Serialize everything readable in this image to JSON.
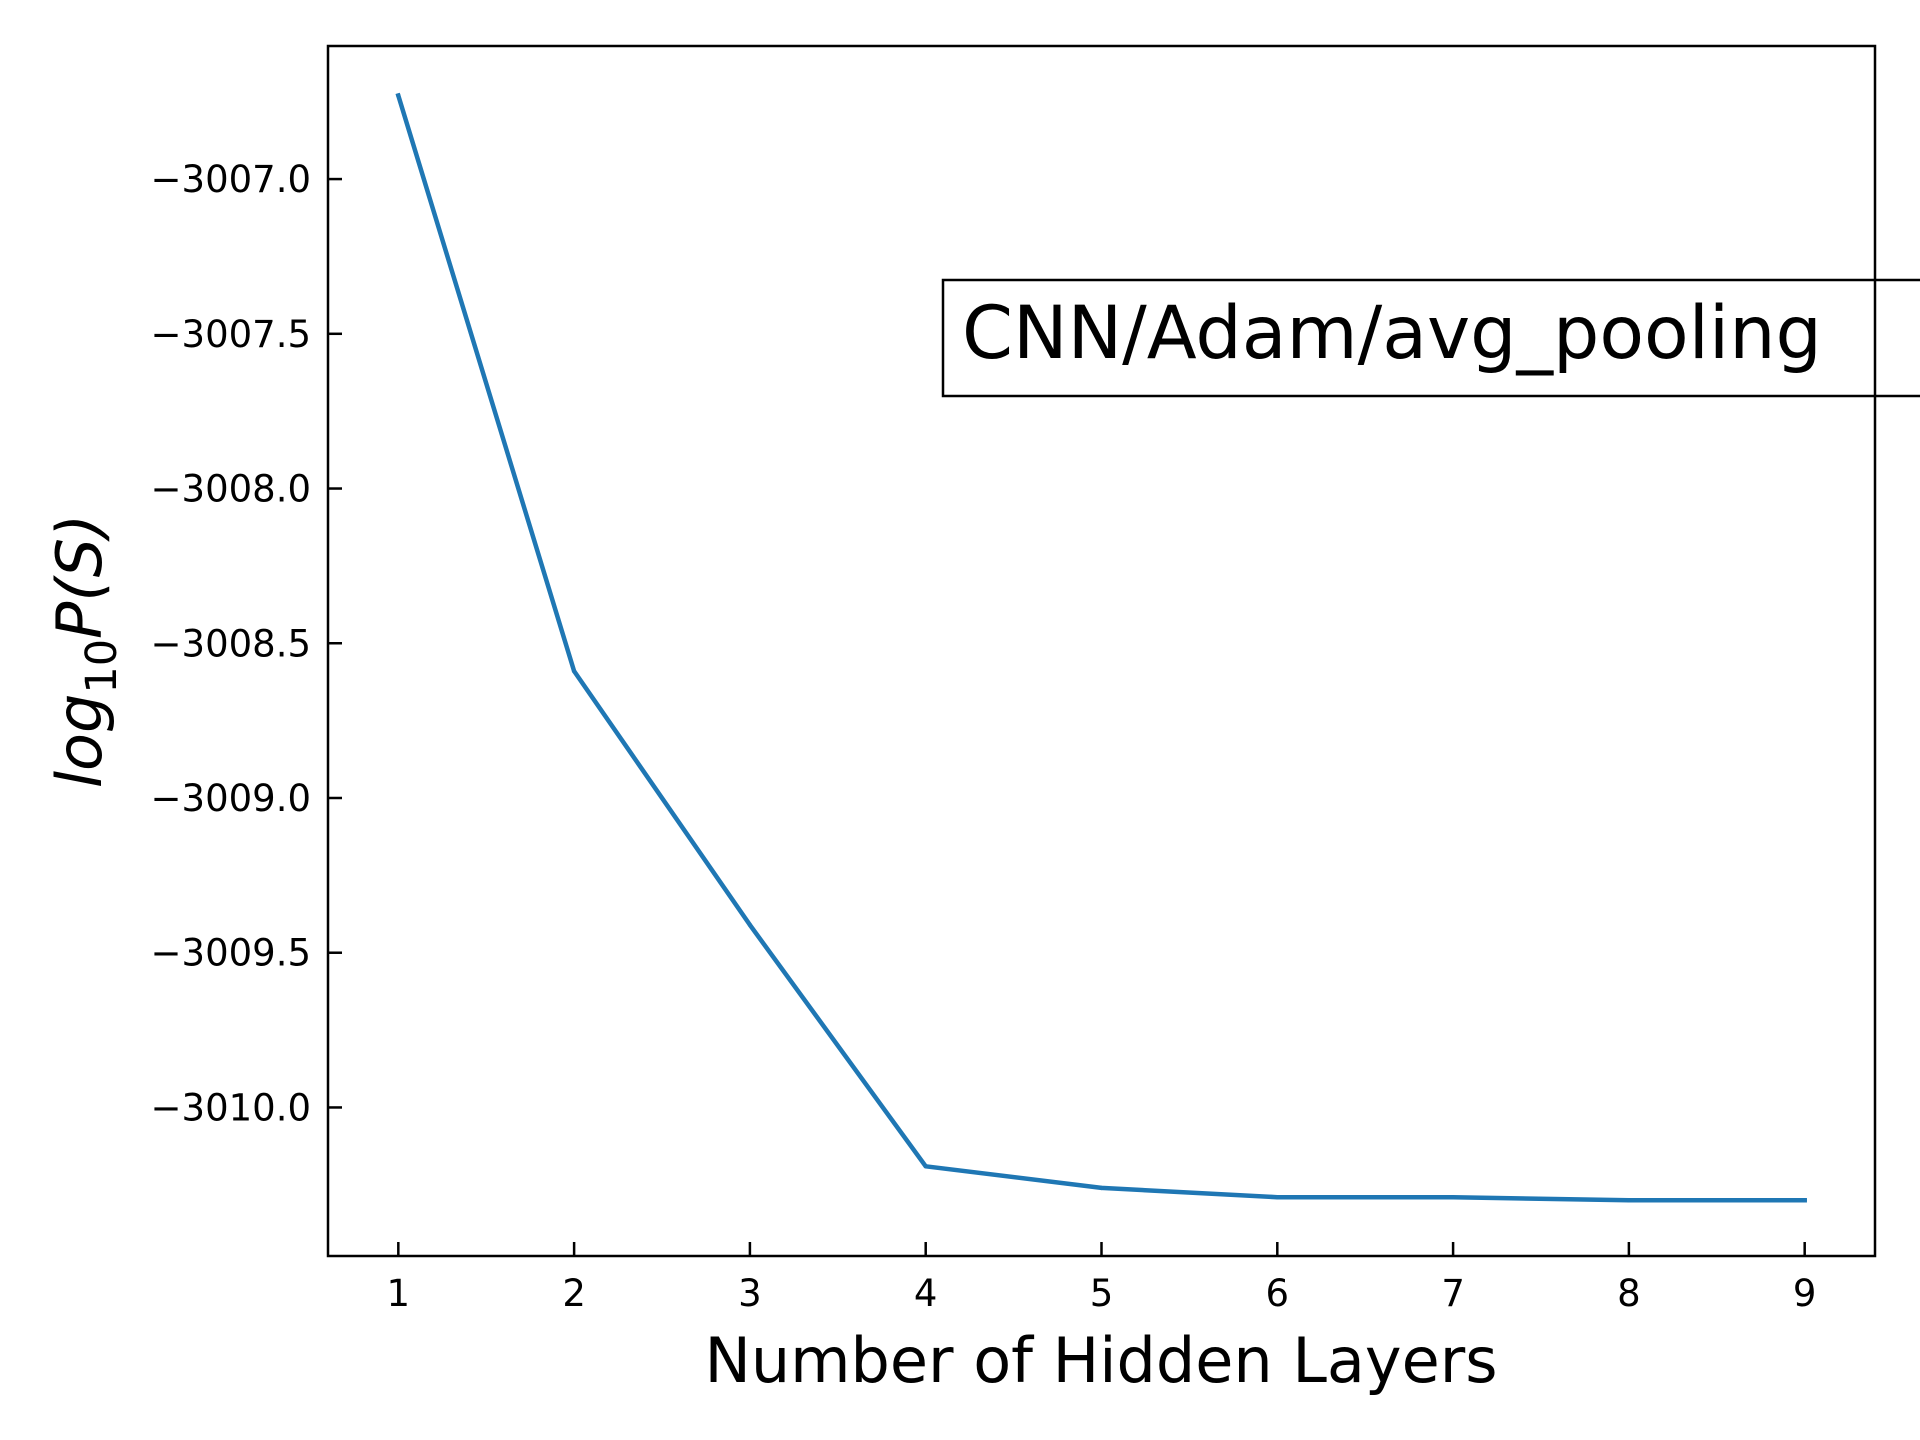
{
  "chart_data": {
    "type": "line",
    "title": "",
    "xlabel": "Number of Hidden Layers",
    "ylabel": "log10P(S)",
    "ylabel_parts": {
      "pre": "log",
      "sub": "10",
      "mid": "P(S)"
    },
    "annotation": "CNN/Adam/avg_pooling",
    "grid": false,
    "xlim": [
      0.6,
      9.4
    ],
    "ylim": [
      -3010.48,
      -3006.57
    ],
    "x_ticks": [
      1,
      2,
      3,
      4,
      5,
      6,
      7,
      8,
      9
    ],
    "x_tick_labels": [
      "1",
      "2",
      "3",
      "4",
      "5",
      "6",
      "7",
      "8",
      "9"
    ],
    "y_ticks": [
      -3007.0,
      -3007.5,
      -3008.0,
      -3008.5,
      -3009.0,
      -3009.5,
      -3010.0
    ],
    "y_tick_labels": [
      "−3007.0",
      "−3007.5",
      "−3008.0",
      "−3008.5",
      "−3009.0",
      "−3009.5",
      "−3010.0"
    ],
    "series": [
      {
        "color": "#1f77b4",
        "x": [
          1,
          2,
          3,
          4,
          5,
          6,
          7,
          8,
          9
        ],
        "y": [
          -3006.73,
          -3008.59,
          -3009.41,
          -3010.19,
          -3010.26,
          -3010.29,
          -3010.29,
          -3010.3,
          -3010.3
        ]
      }
    ]
  }
}
